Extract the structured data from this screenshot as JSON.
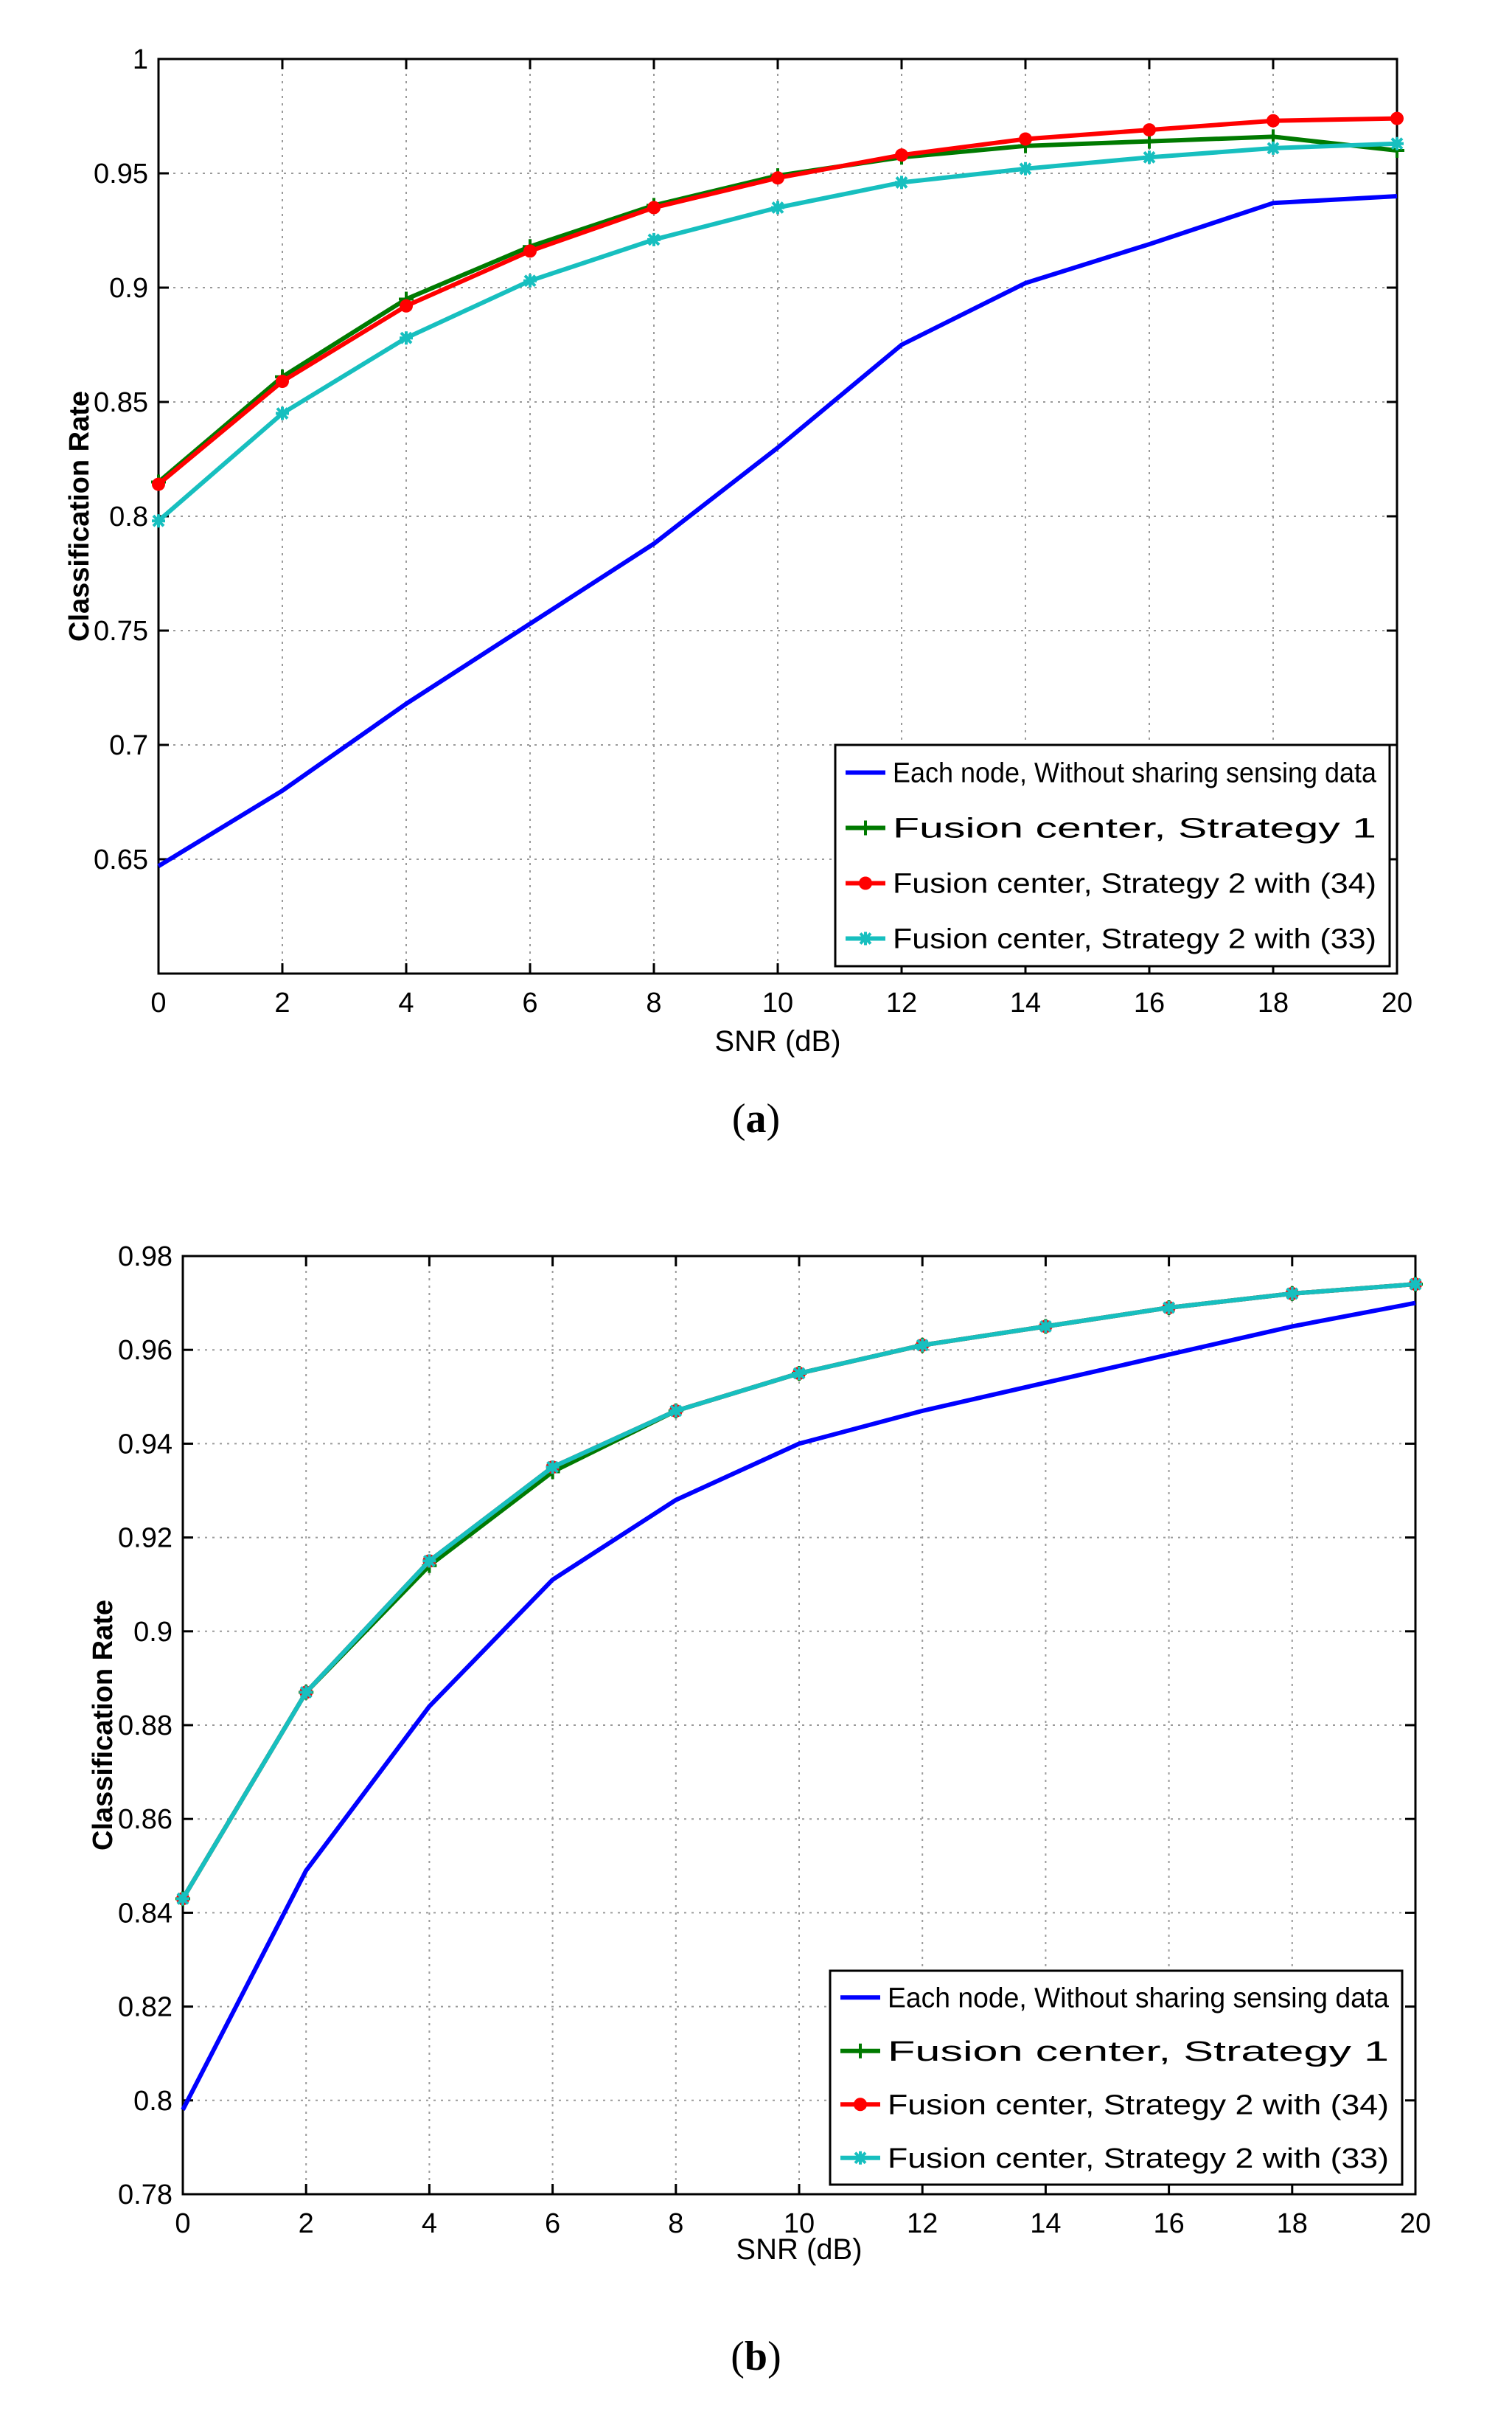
{
  "colors": {
    "blue": "#0000ff",
    "green": "#007a00",
    "red": "#ff0000",
    "cyan": "#17bfbf",
    "axis": "#000000",
    "grid": "#9a9a9a"
  },
  "chart_data": [
    {
      "type": "line",
      "id": "a",
      "caption": {
        "open": "(",
        "letter": "a",
        "close": ")"
      },
      "title": "",
      "xlabel": "SNR (dB)",
      "ylabel": "Classification Rate",
      "xlim": [
        0,
        20
      ],
      "ylim": [
        0.6,
        1.0
      ],
      "xticks": [
        0,
        2,
        4,
        6,
        8,
        10,
        12,
        14,
        16,
        18,
        20
      ],
      "yticks": [
        0.65,
        0.7,
        0.75,
        0.8,
        0.85,
        0.9,
        0.95,
        1
      ],
      "ytick_labels": [
        "0.65",
        "0.7",
        "0.75",
        "0.8",
        "0.85",
        "0.9",
        "0.95",
        "1"
      ],
      "grid": true,
      "legend_position": "bottom-right",
      "x": [
        0,
        2,
        4,
        6,
        8,
        10,
        12,
        14,
        16,
        18,
        20
      ],
      "series": [
        {
          "name": "Each node, Without sharing sensing data",
          "color": "blue",
          "marker": "none",
          "values": [
            0.647,
            0.68,
            0.718,
            0.753,
            0.788,
            0.83,
            0.875,
            0.902,
            0.919,
            0.937,
            0.94
          ]
        },
        {
          "name": "Fusion center, Strategy 1",
          "color": "green",
          "marker": "plus",
          "values": [
            0.815,
            0.861,
            0.895,
            0.918,
            0.936,
            0.949,
            0.957,
            0.962,
            0.964,
            0.966,
            0.96
          ]
        },
        {
          "name": "Fusion center, Strategy 2 with (34)",
          "color": "red",
          "marker": "dot",
          "values": [
            0.814,
            0.859,
            0.892,
            0.916,
            0.935,
            0.948,
            0.958,
            0.965,
            0.969,
            0.973,
            0.974
          ]
        },
        {
          "name": "Fusion center, Strategy 2 with (33)",
          "color": "cyan",
          "marker": "star",
          "values": [
            0.798,
            0.845,
            0.878,
            0.903,
            0.921,
            0.935,
            0.946,
            0.952,
            0.957,
            0.961,
            0.963
          ]
        }
      ]
    },
    {
      "type": "line",
      "id": "b",
      "caption": {
        "open": "(",
        "letter": "b",
        "close": ")"
      },
      "title": "",
      "xlabel": "SNR (dB)",
      "ylabel": "Classification Rate",
      "xlim": [
        0,
        20
      ],
      "ylim": [
        0.78,
        0.98
      ],
      "xticks": [
        0,
        2,
        4,
        6,
        8,
        10,
        12,
        14,
        16,
        18,
        20
      ],
      "yticks": [
        0.78,
        0.8,
        0.82,
        0.84,
        0.86,
        0.88,
        0.9,
        0.92,
        0.94,
        0.96,
        0.98
      ],
      "ytick_labels": [
        "0.78",
        "0.8",
        "0.82",
        "0.84",
        "0.86",
        "0.88",
        "0.9",
        "0.92",
        "0.94",
        "0.96",
        "0.98"
      ],
      "grid": true,
      "legend_position": "bottom-right",
      "x": [
        0,
        2,
        4,
        6,
        8,
        10,
        12,
        14,
        16,
        18,
        20
      ],
      "series": [
        {
          "name": "Each node, Without sharing sensing data",
          "color": "blue",
          "marker": "none",
          "values": [
            0.798,
            0.849,
            0.884,
            0.911,
            0.928,
            0.94,
            0.947,
            0.953,
            0.959,
            0.965,
            0.97
          ]
        },
        {
          "name": "Fusion center, Strategy 1",
          "color": "green",
          "marker": "plus",
          "values": [
            0.843,
            0.887,
            0.914,
            0.934,
            0.947,
            0.955,
            0.961,
            0.965,
            0.969,
            0.972,
            0.974
          ]
        },
        {
          "name": "Fusion center, Strategy 2 with (34)",
          "color": "red",
          "marker": "dot",
          "values": [
            0.843,
            0.887,
            0.915,
            0.935,
            0.947,
            0.955,
            0.961,
            0.965,
            0.969,
            0.972,
            0.974
          ]
        },
        {
          "name": "Fusion center, Strategy 2 with (33)",
          "color": "cyan",
          "marker": "star",
          "values": [
            0.843,
            0.887,
            0.915,
            0.935,
            0.947,
            0.955,
            0.961,
            0.965,
            0.969,
            0.972,
            0.974
          ]
        }
      ]
    }
  ]
}
